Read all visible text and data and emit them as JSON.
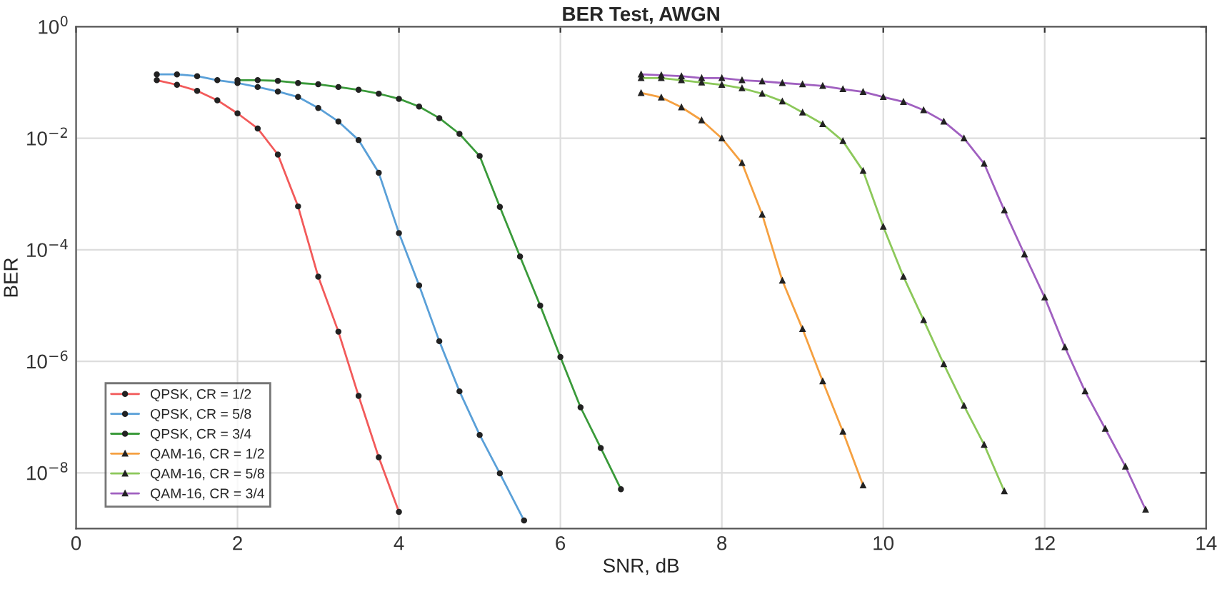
{
  "chart_data": {
    "type": "line",
    "title": "BER Test, AWGN",
    "xlabel": "SNR, dB",
    "ylabel": "BER",
    "log": "y",
    "grid": true,
    "legend": "bottom left",
    "line_style": "solid",
    "xlim": [
      0,
      14
    ],
    "xticks": [
      0,
      2,
      4,
      6,
      8,
      10,
      12,
      14
    ],
    "ylim": [
      1e-09,
      1
    ],
    "yticks": [
      {
        "value": 1,
        "label": "10$^{0}$"
      },
      {
        "value": 0.01,
        "label": "10$^{−2}$"
      },
      {
        "value": 0.0001,
        "label": "10$^{−4}$"
      },
      {
        "value": 1e-06,
        "label": "10$^{−6}$"
      },
      {
        "value": 1e-08,
        "label": "10$^{−8}$"
      }
    ],
    "series": [
      {
        "name": "QPSK, CR = 1/2",
        "color": "#f25a5a",
        "marker": "circle",
        "x": [
          1,
          1.25,
          1.5,
          1.75,
          2,
          2.25,
          2.5,
          2.75,
          3,
          3.25,
          3.5,
          3.75,
          4
        ],
        "values": [
          0.11,
          0.091,
          0.071,
          0.048,
          0.028,
          0.015,
          0.0051,
          0.0006,
          3.3e-05,
          3.4e-06,
          2.4e-07,
          1.9e-08,
          2e-09
        ]
      },
      {
        "name": "QPSK, CR = 5/8",
        "color": "#5aa0d8",
        "marker": "circle",
        "x": [
          1,
          1.25,
          1.5,
          1.75,
          2,
          2.25,
          2.5,
          2.75,
          3,
          3.25,
          3.5,
          3.75,
          4,
          4.25,
          4.5,
          4.75,
          5,
          5.25,
          5.55
        ],
        "values": [
          0.14,
          0.14,
          0.13,
          0.11,
          0.098,
          0.083,
          0.069,
          0.055,
          0.035,
          0.02,
          0.0093,
          0.0024,
          0.0002,
          2.3e-05,
          2.3e-06,
          2.9e-07,
          4.8e-08,
          9.8e-09,
          1.4e-09
        ]
      },
      {
        "name": "QPSK, CR = 3/4",
        "color": "#3a9a3a",
        "marker": "circle",
        "x": [
          2,
          2.25,
          2.5,
          2.75,
          3,
          3.25,
          3.5,
          3.75,
          4,
          4.25,
          4.5,
          4.75,
          5,
          5.25,
          5.5,
          5.75,
          6,
          6.25,
          6.5,
          6.75
        ],
        "values": [
          0.11,
          0.11,
          0.107,
          0.098,
          0.093,
          0.083,
          0.074,
          0.063,
          0.051,
          0.037,
          0.023,
          0.012,
          0.0048,
          0.00059,
          7.6e-05,
          1e-05,
          1.2e-06,
          1.5e-07,
          2.8e-08,
          5.1e-09
        ]
      },
      {
        "name": "QAM-16, CR = 1/2",
        "color": "#f5a040",
        "marker": "triangle",
        "x": [
          7,
          7.25,
          7.5,
          7.75,
          8,
          8.25,
          8.5,
          8.75,
          9,
          9.25,
          9.5,
          9.75
        ],
        "values": [
          0.065,
          0.054,
          0.036,
          0.021,
          0.01,
          0.0036,
          0.00043,
          2.8e-05,
          3.8e-06,
          4.4e-07,
          5.5e-08,
          6e-09
        ]
      },
      {
        "name": "QAM-16, CR = 5/8",
        "color": "#8cc85a",
        "marker": "triangle",
        "x": [
          7,
          7.25,
          7.5,
          7.75,
          8,
          8.25,
          8.5,
          8.75,
          9,
          9.25,
          9.5,
          9.75,
          10,
          10.25,
          10.5,
          10.75,
          11,
          11.25,
          11.5
        ],
        "values": [
          0.12,
          0.12,
          0.11,
          0.1,
          0.091,
          0.079,
          0.063,
          0.046,
          0.029,
          0.018,
          0.0089,
          0.0026,
          0.00026,
          3.3e-05,
          5.5e-06,
          8.9e-07,
          1.6e-07,
          3.2e-08,
          4.7e-09
        ]
      },
      {
        "name": "QAM-16, CR = 3/4",
        "color": "#a060c0",
        "marker": "triangle",
        "x": [
          7,
          7.25,
          7.5,
          7.75,
          8,
          8.25,
          8.5,
          8.75,
          9,
          9.25,
          9.5,
          9.75,
          10,
          10.25,
          10.5,
          10.75,
          11,
          11.25,
          11.5,
          11.75,
          12,
          12.25,
          12.5,
          12.75,
          13,
          13.25
        ],
        "values": [
          0.14,
          0.135,
          0.13,
          0.12,
          0.12,
          0.11,
          0.105,
          0.098,
          0.093,
          0.087,
          0.076,
          0.068,
          0.055,
          0.045,
          0.032,
          0.02,
          0.01,
          0.0035,
          0.00051,
          8.3e-05,
          1.4e-05,
          1.8e-06,
          2.9e-07,
          6.2e-08,
          1.3e-08,
          2.2e-09
        ]
      }
    ]
  }
}
